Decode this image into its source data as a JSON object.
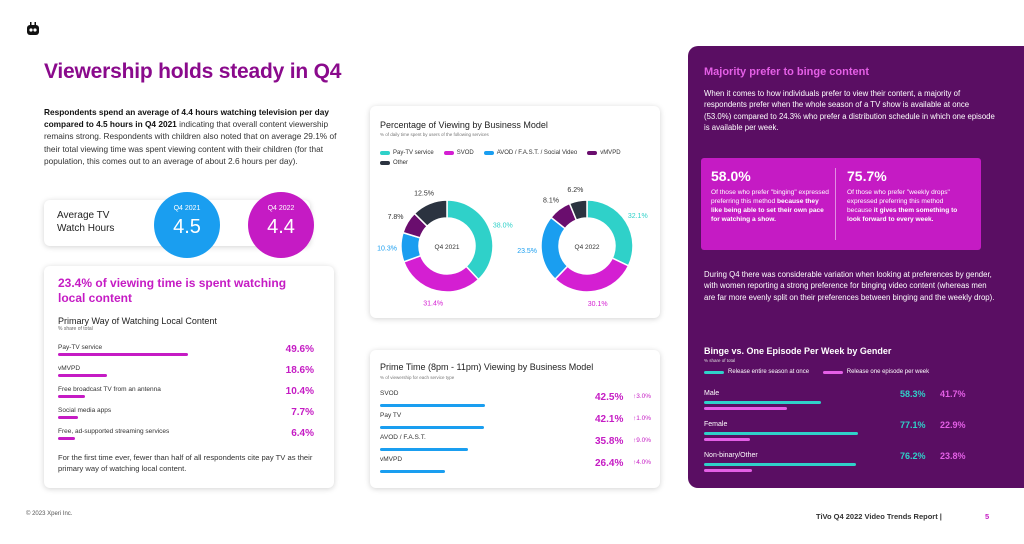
{
  "page_title": "Viewership holds steady in Q4",
  "intro": {
    "bold": "Respondents spend an average of 4.4 hours watching television per day compared to 4.5 hours in Q4 2021",
    "rest": " indicating that overall content viewership remains strong. Respondents with children also noted that on average 29.1% of their total viewing time was spent viewing content with their children (for that population, this comes out to an average of about 2.6 hours per day)."
  },
  "avg_watch": {
    "label": "Average TV Watch Hours",
    "q4_2021": {
      "year": "Q4 2021",
      "value": "4.5"
    },
    "q4_2022": {
      "year": "Q4 2022",
      "value": "4.4"
    }
  },
  "local": {
    "headline": "23.4% of viewing time is spent watching local content",
    "subtitle": "Primary Way of Watching Local Content",
    "note": "% share of total",
    "rows": [
      {
        "label": "Pay-TV service",
        "value": "49.6%",
        "pct": 49.6
      },
      {
        "label": "vMVPD",
        "value": "18.6%",
        "pct": 18.6
      },
      {
        "label": "Free broadcast TV from an antenna",
        "value": "10.4%",
        "pct": 10.4
      },
      {
        "label": "Social media apps",
        "value": "7.7%",
        "pct": 7.7
      },
      {
        "label": "Free, ad-supported streaming services",
        "value": "6.4%",
        "pct": 6.4
      }
    ],
    "footer": "For the first time ever, fewer than half of all respondents cite pay TV as their primary way of watching local content."
  },
  "donut": {
    "title": "Percentage of Viewing by Business Model",
    "note": "% of daily time spent by users of the following services",
    "legend": [
      {
        "name": "Pay-TV service",
        "color": "#2fd1c9"
      },
      {
        "name": "SVOD",
        "color": "#d41fd2"
      },
      {
        "name": "AVOD / F.A.S.T. / Social Video",
        "color": "#1a9ef0"
      },
      {
        "name": "vMVPD",
        "color": "#6a0d6e"
      },
      {
        "name": "Other",
        "color": "#2b3340"
      }
    ],
    "charts": [
      {
        "center": "Q4 2021",
        "values": [
          38.0,
          31.4,
          10.3,
          7.8,
          12.5
        ],
        "labels": [
          "38.0%",
          "31.4%",
          "10.3%",
          "7.8%",
          "12.5%"
        ]
      },
      {
        "center": "Q4 2022",
        "values": [
          32.1,
          30.1,
          23.5,
          8.1,
          6.2
        ],
        "labels": [
          "32.1%",
          "30.1%",
          "23.5%",
          "8.1%",
          "6.2%"
        ]
      }
    ]
  },
  "prime": {
    "title": "Prime Time (8pm - 11pm) Viewing by Business Model",
    "note": "% of viewership for each service type",
    "rows": [
      {
        "label": "SVOD",
        "value": "42.5%",
        "pct": 42.5,
        "change": "3.0%"
      },
      {
        "label": "Pay TV",
        "value": "42.1%",
        "pct": 42.1,
        "change": "1.0%"
      },
      {
        "label": "AVOD / F.A.S.T.",
        "value": "35.8%",
        "pct": 35.8,
        "change": "9.0%"
      },
      {
        "label": "vMVPD",
        "value": "26.4%",
        "pct": 26.4,
        "change": "4.0%"
      }
    ]
  },
  "panel": {
    "heading": "Majority prefer to binge content",
    "text1": "When it comes to how individuals prefer to view their content, a majority of respondents prefer when the whole season of a TV show is available at once (53.0%) compared to 24.3% who prefer a distribution schedule in which one episode is available per week.",
    "stat1": {
      "value": "58.0%",
      "desc": "Of those who prefer \"binging\" expressed preferring this method ",
      "desc_bold": "because they like being able to set their own pace for watching a show."
    },
    "stat2": {
      "value": "75.7%",
      "desc": "Of those who prefer \"weekly drops\" expressed preferring this method because ",
      "desc_bold": "it gives them something to look forward to every week."
    },
    "text2": "During Q4 there was considerable variation when looking at preferences by gender, with women reporting a strong preference for binging video content (whereas men are far more evenly split on their preferences between binging and the weekly drop).",
    "binge_title": "Binge vs. One Episode Per Week by Gender",
    "binge_note": "% share of total",
    "legend1": "Release entire season at once",
    "legend2": "Release one episode per week",
    "rows": [
      {
        "label": "Male",
        "v1": "58.3%",
        "v2": "41.7%",
        "p1": 58.3,
        "p2": 41.7
      },
      {
        "label": "Female",
        "v1": "77.1%",
        "v2": "22.9%",
        "p1": 77.1,
        "p2": 22.9
      },
      {
        "label": "Non-binary/Other",
        "v1": "76.2%",
        "v2": "23.8%",
        "p1": 76.2,
        "p2": 23.8
      }
    ]
  },
  "footer": {
    "copyright": "© 2023 Xperi Inc.",
    "report": "TiVo Q4 2022 Video Trends Report  |",
    "page": "5"
  }
}
